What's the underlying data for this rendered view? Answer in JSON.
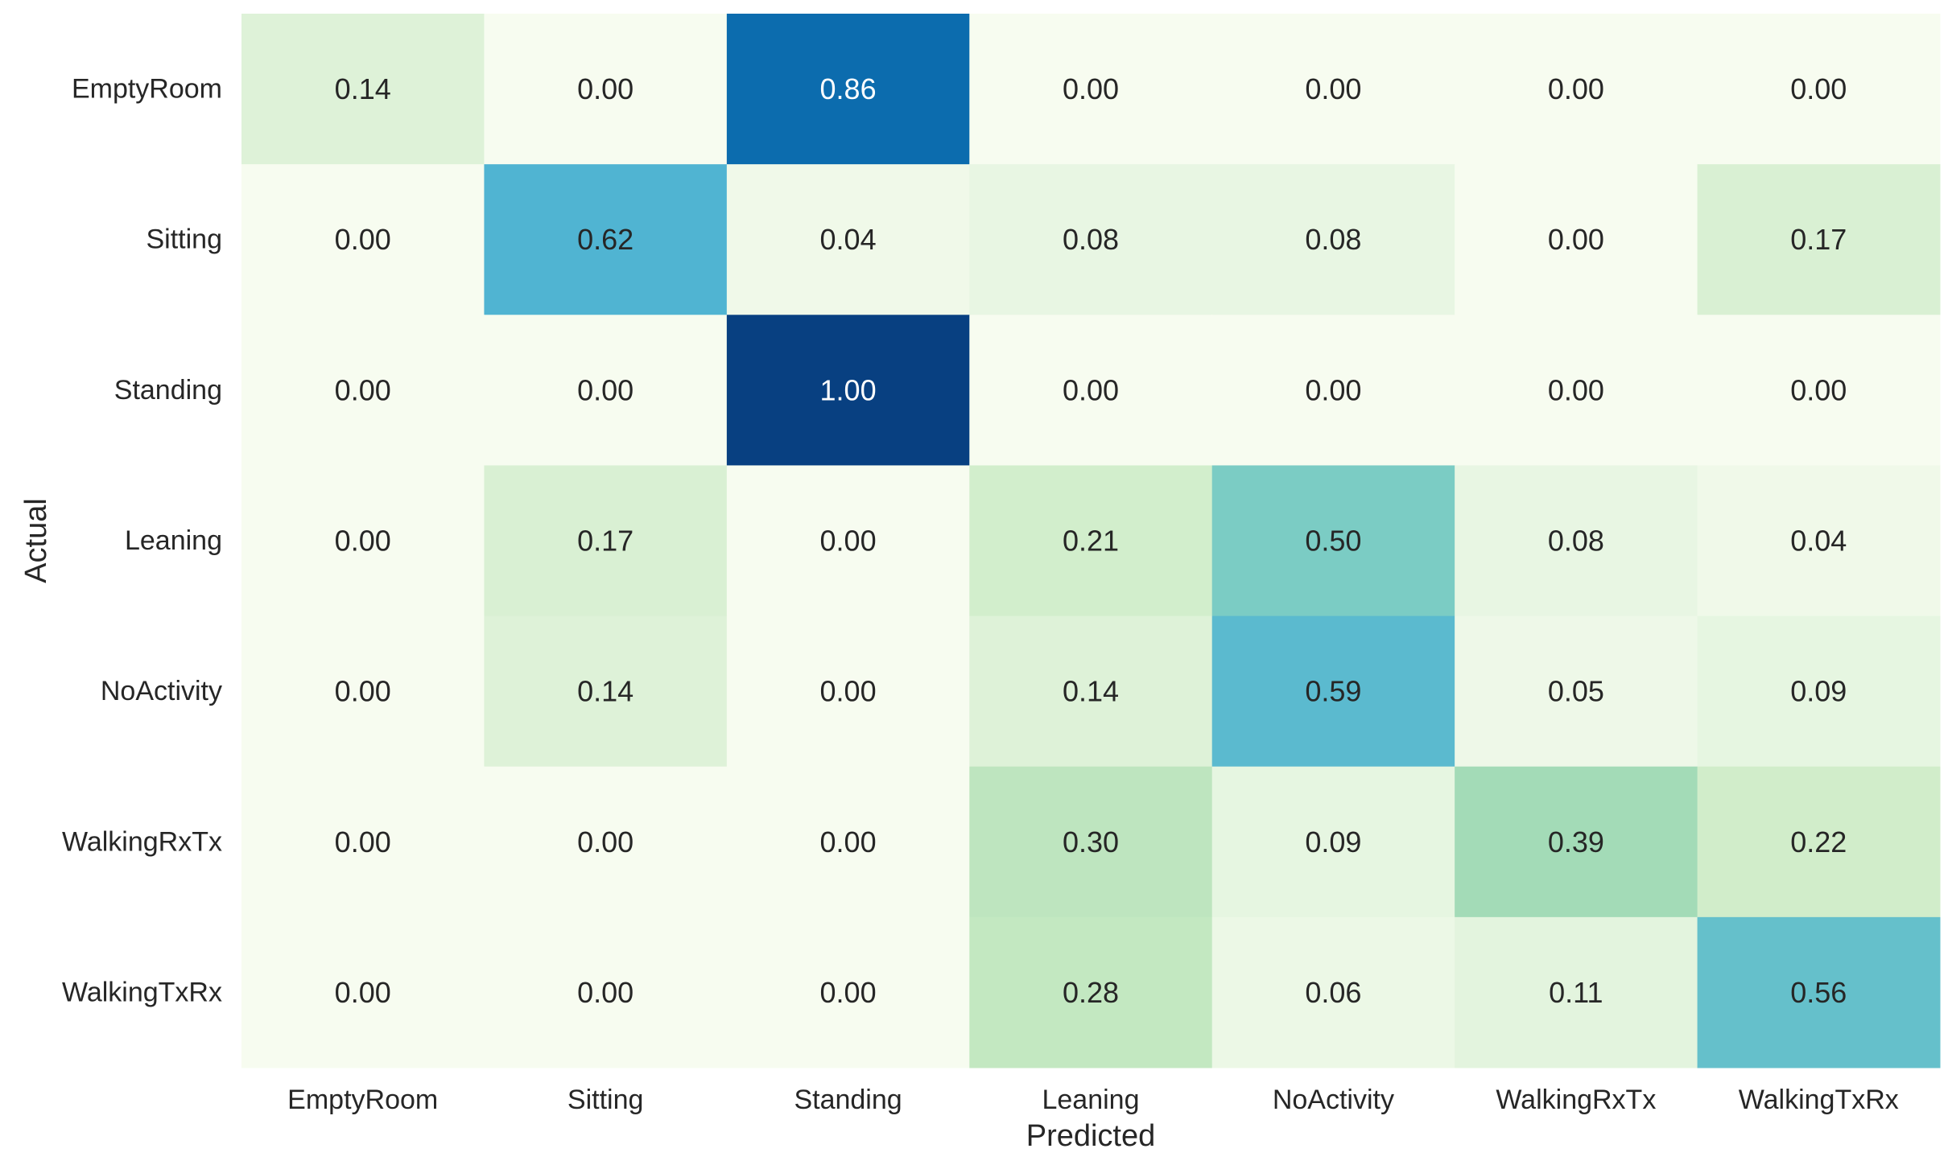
{
  "chart_data": {
    "type": "heatmap",
    "title": "",
    "xlabel": "Predicted",
    "ylabel": "Actual",
    "x_categories": [
      "EmptyRoom",
      "Sitting",
      "Standing",
      "Leaning",
      "NoActivity",
      "WalkingRxTx",
      "WalkingTxRx"
    ],
    "y_categories": [
      "EmptyRoom",
      "Sitting",
      "Standing",
      "Leaning",
      "NoActivity",
      "WalkingRxTx",
      "WalkingTxRx"
    ],
    "values": [
      [
        0.14,
        0.0,
        0.86,
        0.0,
        0.0,
        0.0,
        0.0
      ],
      [
        0.0,
        0.62,
        0.04,
        0.08,
        0.08,
        0.0,
        0.17
      ],
      [
        0.0,
        0.0,
        1.0,
        0.0,
        0.0,
        0.0,
        0.0
      ],
      [
        0.0,
        0.17,
        0.0,
        0.21,
        0.5,
        0.08,
        0.04
      ],
      [
        0.0,
        0.14,
        0.0,
        0.14,
        0.59,
        0.05,
        0.09
      ],
      [
        0.0,
        0.0,
        0.0,
        0.3,
        0.09,
        0.39,
        0.22
      ],
      [
        0.0,
        0.0,
        0.0,
        0.28,
        0.06,
        0.11,
        0.56
      ]
    ],
    "value_format": "0.00",
    "vmin": 0,
    "vmax": 1,
    "colormap": "GnBu",
    "colorbar": false,
    "grid": false
  }
}
